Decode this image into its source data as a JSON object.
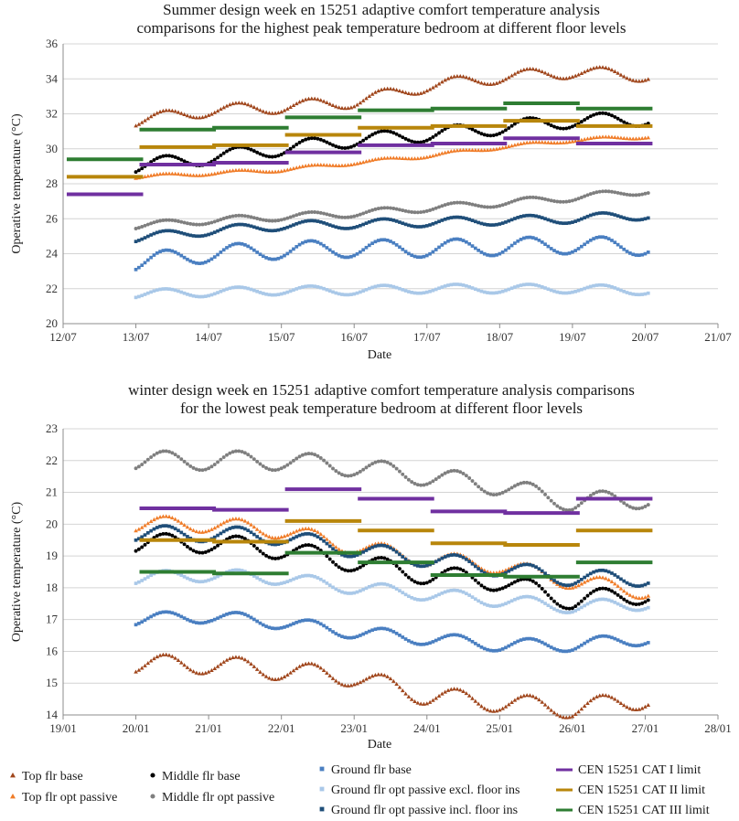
{
  "chart_data": [
    {
      "type": "scatter",
      "title": [
        "Summer design week en 15251 adaptive comfort temperature analysis",
        "comparisons for  the highest peak temperature bedroom at different floor levels"
      ],
      "xlabel": "Date",
      "ylabel": "Operative temperature (°C)",
      "ylim": [
        20,
        36
      ],
      "yticks": [
        20,
        22,
        24,
        26,
        28,
        30,
        32,
        34,
        36
      ],
      "xlim": [
        0,
        9
      ],
      "xtick_labels": [
        "12/07",
        "13/07",
        "14/07",
        "15/07",
        "16/07",
        "17/07",
        "18/07",
        "19/07",
        "20/07",
        "21/07"
      ],
      "series": [
        {
          "name": "Top flr base",
          "points_per_day": 24,
          "x_start": 1,
          "daily_start": [
            31.6,
            32.2,
            32.4,
            32.7,
            33.6,
            34.1,
            34.4,
            34.2
          ],
          "amplitude": 0.35
        },
        {
          "name": "Top flr opt passive",
          "points_per_day": 24,
          "x_start": 1,
          "daily_start": [
            28.4,
            28.6,
            28.8,
            29.2,
            29.6,
            30.1,
            30.5,
            30.7
          ],
          "amplitude": 0.1
        },
        {
          "name": "Middle flr base",
          "points_per_day": 24,
          "x_start": 1,
          "daily_start": [
            29.0,
            29.5,
            30.0,
            30.5,
            30.8,
            31.2,
            31.6,
            31.7
          ],
          "amplitude": 0.4
        },
        {
          "name": "Middle flr opt passive",
          "points_per_day": 24,
          "x_start": 1,
          "daily_start": [
            25.6,
            25.9,
            26.1,
            26.3,
            26.6,
            26.9,
            27.2,
            27.6
          ],
          "amplitude": 0.2
        },
        {
          "name": "Ground flr base",
          "points_per_day": 24,
          "x_start": 1,
          "daily_start": [
            23.5,
            24.0,
            24.2,
            24.3,
            24.3,
            24.4,
            24.5,
            24.4
          ],
          "amplitude": 0.5
        },
        {
          "name": "Ground flr opt passive excl. floor ins",
          "points_per_day": 24,
          "x_start": 1,
          "daily_start": [
            21.7,
            21.8,
            21.9,
            21.9,
            22.0,
            22.0,
            22.0,
            21.9
          ],
          "amplitude": 0.25
        },
        {
          "name": "Ground flr opt passive incl. floor ins",
          "points_per_day": 24,
          "x_start": 1,
          "daily_start": [
            24.9,
            25.3,
            25.6,
            25.7,
            25.8,
            25.9,
            26.0,
            26.2
          ],
          "amplitude": 0.25
        }
      ],
      "limits": [
        {
          "name": "CEN 15251 CAT I limit",
          "steps": [
            [
              0.0,
              27.4
            ],
            [
              1.0,
              29.1
            ],
            [
              2.0,
              29.2
            ],
            [
              3.0,
              29.8
            ],
            [
              4.0,
              30.2
            ],
            [
              5.0,
              30.3
            ],
            [
              6.0,
              30.6
            ],
            [
              7.0,
              30.3
            ]
          ]
        },
        {
          "name": "CEN 15251 CAT II limit",
          "steps": [
            [
              0.0,
              28.4
            ],
            [
              1.0,
              30.1
            ],
            [
              2.0,
              30.2
            ],
            [
              3.0,
              30.8
            ],
            [
              4.0,
              31.2
            ],
            [
              5.0,
              31.3
            ],
            [
              6.0,
              31.6
            ],
            [
              7.0,
              31.3
            ]
          ]
        },
        {
          "name": "CEN 15251 CAT III limit",
          "steps": [
            [
              0.0,
              29.4
            ],
            [
              1.0,
              31.1
            ],
            [
              2.0,
              31.2
            ],
            [
              3.0,
              31.8
            ],
            [
              4.0,
              32.2
            ],
            [
              5.0,
              32.3
            ],
            [
              6.0,
              32.6
            ],
            [
              7.0,
              32.3
            ]
          ]
        }
      ]
    },
    {
      "type": "scatter",
      "title": [
        "winter design week en 15251 adaptive comfort temperature analysis comparisons",
        "for the lowest peak temperature bedroom at different floor levels"
      ],
      "xlabel": "Date",
      "ylabel": "Operative temperature (°C)",
      "ylim": [
        14,
        23
      ],
      "yticks": [
        14,
        15,
        16,
        17,
        18,
        19,
        20,
        21,
        22,
        23
      ],
      "xlim": [
        0,
        9
      ],
      "xtick_labels": [
        "19/01",
        "20/01",
        "21/01",
        "22/01",
        "23/01",
        "24/01",
        "25/01",
        "26/01",
        "27/01",
        "28/01"
      ],
      "series": [
        {
          "name": "Top flr base",
          "points_per_day": 24,
          "x_start": 1,
          "daily_start": [
            15.6,
            15.6,
            15.4,
            15.2,
            14.6,
            14.4,
            14.2,
            14.5
          ],
          "amplitude": 0.3
        },
        {
          "name": "Top flr opt passive",
          "points_per_day": 24,
          "x_start": 1,
          "daily_start": [
            20.0,
            20.0,
            19.8,
            19.3,
            18.9,
            18.7,
            18.2,
            17.9
          ],
          "amplitude": 0.25
        },
        {
          "name": "Middle flr base",
          "points_per_day": 24,
          "x_start": 1,
          "daily_start": [
            19.4,
            19.4,
            19.2,
            18.8,
            18.4,
            18.2,
            17.6,
            17.8
          ],
          "amplitude": 0.3
        },
        {
          "name": "Middle flr opt passive",
          "points_per_day": 24,
          "x_start": 1,
          "daily_start": [
            22.0,
            22.0,
            22.0,
            21.8,
            21.5,
            21.2,
            20.7,
            20.8
          ],
          "amplitude": 0.3
        },
        {
          "name": "Ground flr base",
          "points_per_day": 24,
          "x_start": 1,
          "daily_start": [
            17.0,
            17.1,
            16.9,
            16.6,
            16.4,
            16.2,
            16.2,
            16.4
          ],
          "amplitude": 0.2
        },
        {
          "name": "Ground flr opt passive excl. floor ins",
          "points_per_day": 24,
          "x_start": 1,
          "daily_start": [
            18.3,
            18.4,
            18.3,
            18.0,
            17.8,
            17.6,
            17.4,
            17.5
          ],
          "amplitude": 0.2
        },
        {
          "name": "Ground flr opt passive incl. floor ins",
          "points_per_day": 24,
          "x_start": 1,
          "daily_start": [
            19.7,
            19.7,
            19.6,
            19.2,
            18.9,
            18.6,
            18.3,
            18.3
          ],
          "amplitude": 0.25
        }
      ],
      "limits": [
        {
          "name": "CEN 15251 CAT I limit",
          "steps": [
            [
              1.0,
              20.5
            ],
            [
              2.0,
              20.45
            ],
            [
              3.0,
              21.1
            ],
            [
              4.0,
              20.8
            ],
            [
              5.0,
              20.4
            ],
            [
              6.0,
              20.35
            ],
            [
              7.0,
              20.8
            ]
          ]
        },
        {
          "name": "CEN 15251 CAT II limit",
          "steps": [
            [
              1.0,
              19.5
            ],
            [
              2.0,
              19.45
            ],
            [
              3.0,
              20.1
            ],
            [
              4.0,
              19.8
            ],
            [
              5.0,
              19.4
            ],
            [
              6.0,
              19.35
            ],
            [
              7.0,
              19.8
            ]
          ]
        },
        {
          "name": "CEN 15251 CAT III limit",
          "steps": [
            [
              1.0,
              18.5
            ],
            [
              2.0,
              18.45
            ],
            [
              3.0,
              19.1
            ],
            [
              4.0,
              18.8
            ],
            [
              5.0,
              18.4
            ],
            [
              6.0,
              18.35
            ],
            [
              7.0,
              18.8
            ]
          ]
        }
      ]
    }
  ],
  "legend": [
    {
      "label": "Top flr base",
      "marker": "triangle",
      "color": "#a0461c"
    },
    {
      "label": "Top flr opt passive",
      "marker": "triangle",
      "color": "#f07c28"
    },
    {
      "label": "Middle flr base",
      "marker": "circle",
      "color": "#000000"
    },
    {
      "label": "Middle flr opt passive",
      "marker": "circle",
      "color": "#7f7f7f"
    },
    {
      "label": "Ground flr base",
      "marker": "square",
      "color": "#4a7fc1"
    },
    {
      "label": "Ground flr opt passive excl. floor ins",
      "marker": "square",
      "color": "#a9c8e8"
    },
    {
      "label": "Ground flr opt passive incl. floor ins",
      "marker": "square",
      "color": "#1f4e79"
    },
    {
      "label": "CEN 15251 CAT I limit",
      "marker": "line",
      "color": "#7030a0"
    },
    {
      "label": "CEN 15251 CAT II limit",
      "marker": "line",
      "color": "#b8860b"
    },
    {
      "label": "CEN 15251 CAT III limit",
      "marker": "line",
      "color": "#2e7d32"
    }
  ]
}
